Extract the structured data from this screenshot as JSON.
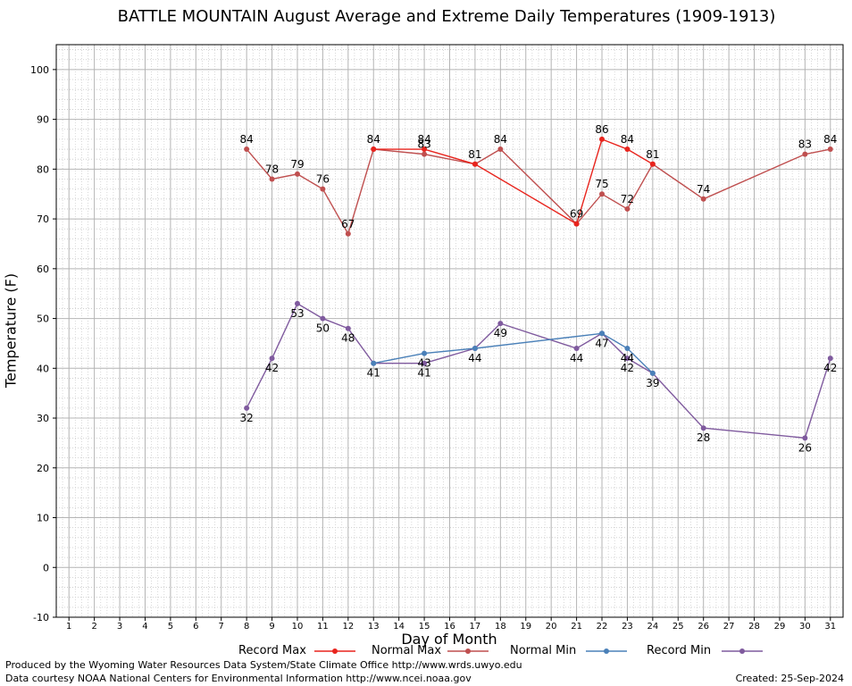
{
  "chart_data": {
    "type": "line",
    "title": "BATTLE MOUNTAIN August Average and Extreme Daily Temperatures (1909-1913)",
    "xlabel": "Day of Month",
    "ylabel": "Temperature (F)",
    "ylim": [
      -10,
      105
    ],
    "xlim": [
      0.5,
      31.5
    ],
    "y_ticks": [
      -10,
      0,
      10,
      20,
      30,
      40,
      50,
      60,
      70,
      80,
      90,
      100
    ],
    "x_ticks": [
      1,
      2,
      3,
      4,
      5,
      6,
      7,
      8,
      9,
      10,
      11,
      12,
      13,
      14,
      15,
      16,
      17,
      18,
      19,
      20,
      21,
      22,
      23,
      24,
      25,
      26,
      27,
      28,
      29,
      30,
      31
    ],
    "grid": true,
    "legend_position": "bottom",
    "series": [
      {
        "name": "Record Max",
        "color": "#e8241d",
        "points": [
          [
            13,
            84
          ],
          [
            15,
            84
          ],
          [
            17,
            81
          ],
          [
            21,
            69
          ],
          [
            22,
            86
          ],
          [
            23,
            84
          ],
          [
            24,
            81
          ]
        ],
        "labels": [
          [
            15,
            84
          ],
          [
            22,
            86
          ],
          [
            23,
            84
          ]
        ]
      },
      {
        "name": "Normal Max",
        "color": "#bf4f4f",
        "points": [
          [
            8,
            84
          ],
          [
            9,
            78
          ],
          [
            10,
            79
          ],
          [
            11,
            76
          ],
          [
            12,
            67
          ],
          [
            13,
            84
          ],
          [
            15,
            83
          ],
          [
            17,
            81
          ],
          [
            18,
            84
          ],
          [
            21,
            69
          ],
          [
            22,
            75
          ],
          [
            23,
            72
          ],
          [
            24,
            81
          ],
          [
            26,
            74
          ],
          [
            30,
            83
          ],
          [
            31,
            84
          ]
        ],
        "labels": [
          [
            8,
            84
          ],
          [
            9,
            78
          ],
          [
            10,
            79
          ],
          [
            11,
            76
          ],
          [
            12,
            67
          ],
          [
            13,
            84
          ],
          [
            15,
            83
          ],
          [
            17,
            81
          ],
          [
            18,
            84
          ],
          [
            21,
            69
          ],
          [
            22,
            75
          ],
          [
            23,
            72
          ],
          [
            24,
            81
          ],
          [
            26,
            74
          ],
          [
            30,
            83
          ],
          [
            31,
            84
          ]
        ]
      },
      {
        "name": "Normal Min",
        "color": "#4a80b8",
        "points": [
          [
            13,
            41
          ],
          [
            15,
            43
          ],
          [
            17,
            44
          ],
          [
            22,
            47
          ],
          [
            23,
            44
          ],
          [
            24,
            39
          ]
        ],
        "labels": [
          [
            15,
            43
          ],
          [
            23,
            44
          ]
        ]
      },
      {
        "name": "Record Min",
        "color": "#7f5a9e",
        "points": [
          [
            8,
            32
          ],
          [
            9,
            42
          ],
          [
            10,
            53
          ],
          [
            11,
            50
          ],
          [
            12,
            48
          ],
          [
            13,
            41
          ],
          [
            15,
            41
          ],
          [
            17,
            44
          ],
          [
            18,
            49
          ],
          [
            21,
            44
          ],
          [
            22,
            47
          ],
          [
            23,
            42
          ],
          [
            24,
            39
          ],
          [
            26,
            28
          ],
          [
            30,
            26
          ],
          [
            31,
            42
          ]
        ],
        "labels": [
          [
            8,
            32
          ],
          [
            9,
            42
          ],
          [
            10,
            53
          ],
          [
            11,
            50
          ],
          [
            12,
            48
          ],
          [
            13,
            41
          ],
          [
            15,
            41
          ],
          [
            17,
            44
          ],
          [
            18,
            49
          ],
          [
            21,
            44
          ],
          [
            22,
            47
          ],
          [
            23,
            42
          ],
          [
            24,
            39
          ],
          [
            26,
            28
          ],
          [
            30,
            26
          ],
          [
            31,
            42
          ]
        ]
      }
    ]
  },
  "footer": {
    "credit_1": "Produced by the Wyoming Water Resources Data System/State Climate Office http://www.wrds.uwyo.edu",
    "credit_2": "Data courtesy NOAA National Centers for Environmental Information http://www.ncei.noaa.gov",
    "created": "Created:  25-Sep-2024"
  }
}
